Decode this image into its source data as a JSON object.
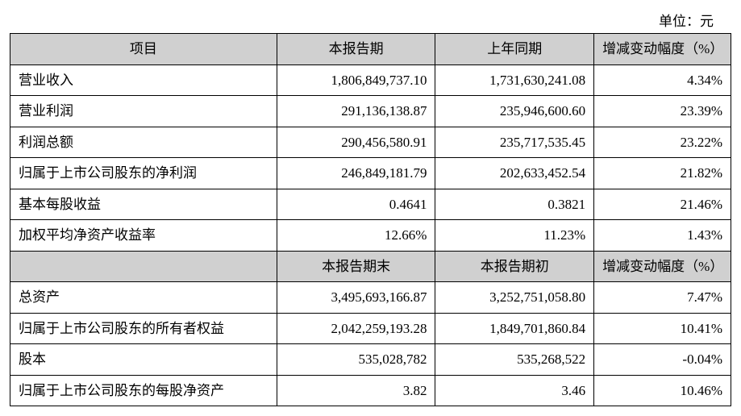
{
  "unit_label": "单位：元",
  "table": {
    "header_bg": "#d0d0d0",
    "border_color": "#000000",
    "text_color": "#000000",
    "font_size_pt": 13,
    "col_widths_pct": [
      37,
      22,
      22,
      19
    ],
    "section1": {
      "headers": [
        "项目",
        "本报告期",
        "上年同期",
        "增减变动幅度（%）"
      ],
      "rows": [
        {
          "label": "营业收入",
          "curr": "1,806,849,737.10",
          "prev": "1,731,630,241.08",
          "change": "4.34%"
        },
        {
          "label": "营业利润",
          "curr": "291,136,138.87",
          "prev": "235,946,600.60",
          "change": "23.39%"
        },
        {
          "label": "利润总额",
          "curr": "290,456,580.91",
          "prev": "235,717,535.45",
          "change": "23.22%"
        },
        {
          "label": "归属于上市公司股东的净利润",
          "curr": "246,849,181.79",
          "prev": "202,633,452.54",
          "change": "21.82%"
        },
        {
          "label": "基本每股收益",
          "curr": "0.4641",
          "prev": "0.3821",
          "change": "21.46%"
        },
        {
          "label": "加权平均净资产收益率",
          "curr": "12.66%",
          "prev": "11.23%",
          "change": "1.43%"
        }
      ]
    },
    "section2": {
      "headers": [
        "",
        "本报告期末",
        "本报告期初",
        "增减变动幅度（%）"
      ],
      "rows": [
        {
          "label": "总资产",
          "curr": "3,495,693,166.87",
          "prev": "3,252,751,058.80",
          "change": "7.47%"
        },
        {
          "label": "归属于上市公司股东的所有者权益",
          "curr": "2,042,259,193.28",
          "prev": "1,849,701,860.84",
          "change": "10.41%"
        },
        {
          "label": "股本",
          "curr": "535,028,782",
          "prev": "535,268,522",
          "change": "-0.04%"
        },
        {
          "label": "归属于上市公司股东的每股净资产",
          "curr": "3.82",
          "prev": "3.46",
          "change": "10.46%"
        }
      ]
    }
  }
}
